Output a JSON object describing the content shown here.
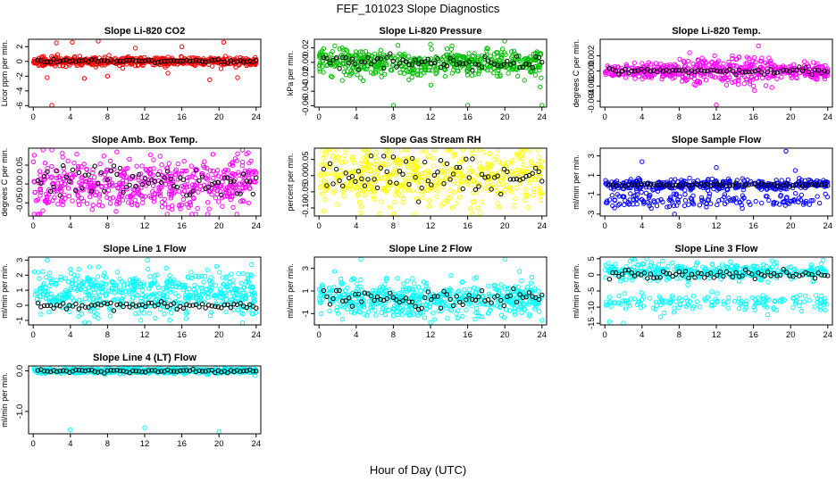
{
  "figure": {
    "title": "FEF_101023  Slope Diagnostics",
    "xlabel": "Hour of Day (UTC)"
  },
  "chart_data": [
    {
      "type": "scatter",
      "title": "Slope Li-820 CO2",
      "ylabel": "Licor ppm per min.",
      "color": "#ff0000",
      "x_ticks": [
        0,
        4,
        8,
        12,
        16,
        20,
        24
      ],
      "y_ticks": [
        -6,
        -4,
        -2,
        0,
        2
      ],
      "y_tick_labels": [
        "-6",
        "-4",
        "-2",
        "0",
        "2"
      ],
      "xlim": [
        -0.5,
        24.5
      ],
      "ylim": [
        -6.2,
        3.0
      ],
      "band": {
        "center": 0,
        "spread": 0.35
      },
      "outliers": [
        [
          1.5,
          -2.2
        ],
        [
          2.0,
          -6.0
        ],
        [
          2.5,
          2.5
        ],
        [
          4.2,
          2.6
        ],
        [
          5.5,
          -2.3
        ],
        [
          7.0,
          3.0
        ],
        [
          8.0,
          -2.0
        ],
        [
          11.0,
          1.8
        ],
        [
          14.5,
          -1.6
        ],
        [
          16.0,
          2.0
        ],
        [
          19.0,
          -2.5
        ],
        [
          20.5,
          2.6
        ],
        [
          22.0,
          -2.2
        ]
      ],
      "black": {
        "center": 0.05,
        "spread": 0.2
      }
    },
    {
      "type": "scatter",
      "title": "Slope Li-820 Pressure",
      "ylabel": "kPa per min.",
      "color": "#00c000",
      "x_ticks": [
        0,
        4,
        8,
        12,
        16,
        20,
        24
      ],
      "y_ticks": [
        -0.06,
        -0.04,
        -0.02,
        0.0,
        0.02
      ],
      "y_tick_labels": [
        "-0.06",
        "-0.04",
        "-0.02",
        "0.00",
        "0.02"
      ],
      "xlim": [
        -0.5,
        24.5
      ],
      "ylim": [
        -0.062,
        0.032
      ],
      "band": {
        "center": 0,
        "spread": 0.012
      },
      "outliers": [
        [
          8.0,
          -0.06
        ],
        [
          16.0,
          -0.06
        ],
        [
          20.0,
          0.03
        ],
        [
          24.0,
          -0.06
        ],
        [
          2.5,
          -0.025
        ],
        [
          12.0,
          0.025
        ]
      ],
      "black": {
        "center": 0.0,
        "spread": 0.008
      }
    },
    {
      "type": "scatter",
      "title": "Slope Li-820 Temp.",
      "ylabel": "degrees C per min.",
      "color": "#ff00ff",
      "x_ticks": [
        0,
        4,
        8,
        12,
        16,
        20,
        24
      ],
      "y_ticks": [
        -0.004,
        -0.002,
        0.0,
        0.002
      ],
      "y_tick_labels": [
        "-0.004",
        "-0.002",
        "0.000",
        "0.002"
      ],
      "xlim": [
        -0.5,
        24.5
      ],
      "ylim": [
        -0.0048,
        0.0042
      ],
      "band": {
        "center": 0,
        "spread": 0.0006,
        "amp": 0.0012,
        "amp_range": [
          8,
          18
        ]
      },
      "outliers": [
        [
          12.0,
          -0.0045
        ],
        [
          16.0,
          -0.002
        ],
        [
          4.0,
          0.001
        ]
      ],
      "black": {
        "center": 0.0,
        "spread": 0.0003
      }
    },
    {
      "type": "scatter",
      "title": "Slope Amb. Box Temp.",
      "ylabel": "degrees C per min.",
      "color": "#ff00ff",
      "x_ticks": [
        0,
        4,
        8,
        12,
        16,
        20,
        24
      ],
      "y_ticks": [
        -0.05,
        0.0,
        0.05
      ],
      "y_tick_labels": [
        "-0.05",
        "0.00",
        "0.05"
      ],
      "xlim": [
        -0.5,
        24.5
      ],
      "ylim": [
        -0.085,
        0.095
      ],
      "band": {
        "center": 0,
        "spread": 0.045
      },
      "outliers": [
        [
          0.5,
          -0.08
        ],
        [
          2.0,
          0.09
        ],
        [
          9.0,
          0.085
        ],
        [
          17.5,
          -0.08
        ],
        [
          22.0,
          0.08
        ]
      ],
      "black": {
        "center": 0.0,
        "spread": 0.04
      }
    },
    {
      "type": "scatter",
      "title": "Slope Gas Stream RH",
      "ylabel": "percent per min.",
      "color": "#ffff00",
      "x_ticks": [
        0,
        4,
        8,
        12,
        16,
        20,
        24
      ],
      "y_ticks": [
        -0.1,
        -0.05,
        0.0,
        0.05
      ],
      "y_tick_labels": [
        "-0.10",
        "-0.05",
        "0.00",
        "0.05"
      ],
      "xlim": [
        -0.5,
        24.5
      ],
      "ylim": [
        -0.125,
        0.085
      ],
      "band": {
        "center": 0,
        "spread": 0.055
      },
      "outliers": [
        [
          0.5,
          -0.11
        ],
        [
          4.5,
          -0.115
        ],
        [
          8.0,
          -0.12
        ],
        [
          14.0,
          0.08
        ]
      ],
      "black": {
        "center": 0.0,
        "spread": 0.05
      }
    },
    {
      "type": "scatter",
      "title": "Slope Sample Flow",
      "ylabel": "ml/min per min.",
      "color": "#0000ff",
      "x_ticks": [
        0,
        4,
        8,
        12,
        16,
        20,
        24
      ],
      "y_ticks": [
        -3,
        -1,
        1,
        3
      ],
      "y_tick_labels": [
        "-3",
        "-1",
        "1",
        "3"
      ],
      "xlim": [
        -0.5,
        24.5
      ],
      "ylim": [
        -3.2,
        3.8
      ],
      "band": {
        "center": 0,
        "spread": 0.35,
        "second_center": -1.6,
        "second_spread": 0.5
      },
      "outliers": [
        [
          4.0,
          2.4
        ],
        [
          5.0,
          -2.4
        ],
        [
          7.5,
          -3.0
        ],
        [
          12.0,
          1.8
        ],
        [
          19.5,
          3.5
        ],
        [
          20.5,
          1.5
        ],
        [
          2.0,
          -1.2
        ]
      ],
      "black": {
        "center": 0.0,
        "spread": 0.15
      }
    },
    {
      "type": "scatter",
      "title": "Slope Line 1 Flow",
      "ylabel": "ml/min per min.",
      "color": "#00ffff",
      "x_ticks": [
        0,
        4,
        8,
        12,
        16,
        20,
        24
      ],
      "y_ticks": [
        -1,
        0,
        1,
        2,
        3
      ],
      "y_tick_labels": [
        "-1",
        "0",
        "1",
        "2",
        "3"
      ],
      "xlim": [
        -0.5,
        24.5
      ],
      "ylim": [
        -1.3,
        3.2
      ],
      "band": {
        "center": 0.8,
        "spread": 0.9
      },
      "outliers": [
        [
          1.5,
          3.0
        ],
        [
          23.5,
          2.7
        ],
        [
          4.0,
          2.4
        ],
        [
          6.0,
          -1.2
        ]
      ],
      "black": {
        "center": 0.0,
        "spread": 0.2
      }
    },
    {
      "type": "scatter",
      "title": "Slope Line 2 Flow",
      "ylabel": "ml/min per min.",
      "color": "#00ffff",
      "x_ticks": [
        0,
        4,
        8,
        12,
        16,
        20,
        24
      ],
      "y_ticks": [
        -1,
        1,
        3
      ],
      "y_tick_labels": [
        "-1",
        "1",
        "3"
      ],
      "xlim": [
        -0.5,
        24.5
      ],
      "ylim": [
        -2.0,
        4.0
      ],
      "band": {
        "center": 0.3,
        "spread": 1.0
      },
      "outliers": [
        [
          4.5,
          3.8
        ],
        [
          20.0,
          3.8
        ],
        [
          12.0,
          -1.8
        ],
        [
          24.0,
          -1.6
        ]
      ],
      "black": {
        "center": 0.3,
        "spread": 0.8
      }
    },
    {
      "type": "scatter",
      "title": "Slope Line 3 Flow",
      "ylabel": "ml/min per min.",
      "color": "#00ffff",
      "x_ticks": [
        0,
        4,
        8,
        12,
        16,
        20,
        24
      ],
      "y_ticks": [
        -15,
        -10,
        -5,
        0,
        5
      ],
      "y_tick_labels": [
        "-15",
        "-10",
        "-5",
        "0",
        "5"
      ],
      "xlim": [
        -0.5,
        24.5
      ],
      "ylim": [
        -15.5,
        5.5
      ],
      "band": {
        "center": 1.0,
        "spread": 1.6,
        "second_center": -8.5,
        "second_spread": 1.6
      },
      "outliers": [
        [
          0.5,
          -14.5
        ],
        [
          2.0,
          -15.0
        ],
        [
          4.5,
          5.0
        ],
        [
          6.0,
          -13.0
        ]
      ],
      "black": {
        "center": 0.0,
        "spread": 1.2
      }
    },
    {
      "type": "scatter",
      "title": "Slope Line 4 (LT) Flow",
      "ylabel": "ml/min per min.",
      "color": "#00ffff",
      "x_ticks": [
        0,
        4,
        8,
        12,
        16,
        20,
        24
      ],
      "y_ticks": [
        -1.0,
        0.0
      ],
      "y_tick_labels": [
        "-1.0",
        "0.0"
      ],
      "xlim": [
        -0.5,
        24.5
      ],
      "ylim": [
        -1.55,
        0.12
      ],
      "band": {
        "center": 0.0,
        "spread": 0.04
      },
      "outliers": [
        [
          4.0,
          -1.45
        ],
        [
          12.0,
          -1.4
        ],
        [
          20.0,
          -1.5
        ]
      ],
      "black": {
        "center": 0.0,
        "spread": 0.03
      }
    }
  ]
}
